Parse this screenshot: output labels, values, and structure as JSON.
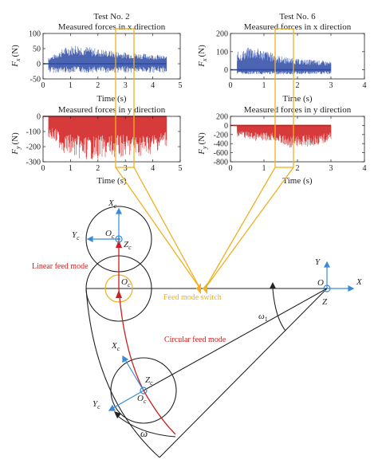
{
  "tests": [
    {
      "title": "Test No. 2"
    },
    {
      "title": "Test No. 6"
    }
  ],
  "axes": {
    "x_title": "Measured forces in x direction",
    "y_title": "Measured forces in y direction",
    "fx_label": "F",
    "fx_sub": "x",
    "fy_label": "F",
    "fy_sub": "y",
    "unit": "(N)",
    "time_label": "Time (s)"
  },
  "chart_data": [
    {
      "type": "line",
      "panel": "Test No. 2 – x",
      "title": "Measured forces in x direction",
      "xlabel": "Time (s)",
      "ylabel": "Fx (N)",
      "xlim": [
        0,
        5
      ],
      "ylim": [
        -50,
        100
      ],
      "xticks": [
        0,
        1,
        2,
        3,
        4,
        5
      ],
      "yticks": [
        -50,
        0,
        50,
        100
      ],
      "color": "#2c4aa6",
      "signal_end": 4.5,
      "envelope_max": [
        [
          0.3,
          25
        ],
        [
          0.8,
          55
        ],
        [
          1.2,
          65
        ],
        [
          2,
          50
        ],
        [
          2.8,
          40
        ],
        [
          3.5,
          35
        ],
        [
          4.2,
          30
        ],
        [
          4.5,
          25
        ]
      ],
      "envelope_min": -30,
      "highlight_x": [
        2.7,
        3.3
      ]
    },
    {
      "type": "line",
      "panel": "Test No. 6 – x",
      "title": "Measured forces in x direction",
      "xlabel": "Time (s)",
      "ylabel": "Fx (N)",
      "xlim": [
        0,
        4
      ],
      "ylim": [
        -50,
        200
      ],
      "xticks": [
        0,
        1,
        2,
        3,
        4
      ],
      "yticks": [
        0,
        100,
        200
      ],
      "color": "#2c4aa6",
      "signal_end": 3.0,
      "envelope_max": [
        [
          0.3,
          100
        ],
        [
          0.6,
          130
        ],
        [
          1.0,
          110
        ],
        [
          1.5,
          75
        ],
        [
          2.0,
          60
        ],
        [
          2.5,
          55
        ],
        [
          3.0,
          45
        ]
      ],
      "envelope_min": -25,
      "highlight_x": [
        1.55,
        1.95
      ]
    },
    {
      "type": "line",
      "panel": "Test No. 2 – y",
      "title": "Measured forces in y direction",
      "xlabel": "Time (s)",
      "ylabel": "Fy (N)",
      "xlim": [
        0,
        5
      ],
      "ylim": [
        -300,
        0
      ],
      "xticks": [
        0,
        1,
        2,
        3,
        4,
        5
      ],
      "yticks": [
        -300,
        -200,
        -100,
        0
      ],
      "color": "#d01818",
      "signal_end": 4.5,
      "envelope_min": [
        [
          0.3,
          -150
        ],
        [
          0.8,
          -250
        ],
        [
          1.5,
          -290
        ],
        [
          2.2,
          -280
        ],
        [
          3.0,
          -270
        ],
        [
          3.8,
          -260
        ],
        [
          4.5,
          -200
        ]
      ],
      "envelope_max": 0,
      "highlight_x": [
        2.7,
        3.3
      ]
    },
    {
      "type": "line",
      "panel": "Test No. 6 – y",
      "title": "Measured forces in y direction",
      "xlabel": "Time (s)",
      "ylabel": "Fy (N)",
      "xlim": [
        0,
        4
      ],
      "ylim": [
        -800,
        200
      ],
      "xticks": [
        0,
        1,
        2,
        3,
        4
      ],
      "yticks": [
        -800,
        -600,
        -400,
        -200,
        0,
        200
      ],
      "color": "#d01818",
      "signal_end": 3.0,
      "envelope_min": [
        [
          0.3,
          -250
        ],
        [
          0.8,
          -350
        ],
        [
          1.3,
          -330
        ],
        [
          1.7,
          -500
        ],
        [
          2.2,
          -470
        ],
        [
          2.7,
          -430
        ],
        [
          3.0,
          -300
        ]
      ],
      "envelope_max": 0,
      "highlight_x": [
        1.55,
        1.95
      ]
    }
  ],
  "diagram": {
    "linear_feed_mode": "Linear feed mode",
    "circular_feed_mode": "Circular feed mode",
    "feed_mode_switch": "Feed mode switch",
    "omega": "ω",
    "omega1": "ω",
    "omega1_sub": "1",
    "origin": "O",
    "X": "X",
    "Y": "Y",
    "Z": "Z",
    "Oc": "O",
    "Xc": "X",
    "Yc": "Y",
    "Zc": "Z",
    "sub_c": "c",
    "colors": {
      "axis": "#3a8ad8",
      "feed": "#cc2020",
      "switch": "#f0b020",
      "line": "#222222"
    }
  }
}
